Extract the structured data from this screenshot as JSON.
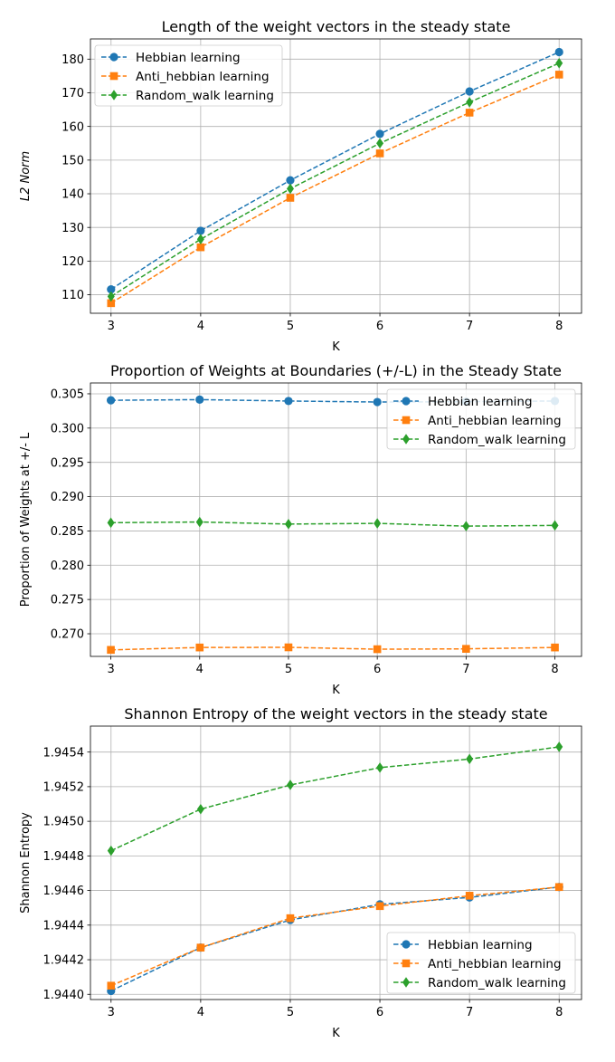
{
  "chart_data": [
    {
      "type": "line",
      "title": "Length of the weight vectors in the steady state",
      "xlabel": "K",
      "ylabel": "L2 Norm",
      "ylabel_italic": true,
      "x": [
        3,
        4,
        5,
        6,
        7,
        8
      ],
      "xlim": [
        2.77,
        8.25
      ],
      "ylim": [
        104.5,
        186.0
      ],
      "yticks": [
        110,
        120,
        130,
        140,
        150,
        160,
        170,
        180
      ],
      "ytick_labels": [
        "110",
        "120",
        "130",
        "140",
        "150",
        "160",
        "170",
        "180"
      ],
      "grid": true,
      "legend_position": "upper-left",
      "series": [
        {
          "name": "Hebbian learning",
          "values": [
            111.6,
            129.0,
            144.0,
            157.8,
            170.4,
            182.1
          ],
          "color": "#1f77b4",
          "marker": "circle"
        },
        {
          "name": "Anti_hebbian learning",
          "values": [
            107.5,
            124.1,
            138.8,
            152.0,
            164.1,
            175.4
          ],
          "color": "#ff7f0e",
          "marker": "square"
        },
        {
          "name": "Random_walk learning",
          "values": [
            109.5,
            126.5,
            141.5,
            155.0,
            167.2,
            178.8
          ],
          "color": "#2ca02c",
          "marker": "diamond"
        }
      ]
    },
    {
      "type": "line",
      "title": "Proportion of Weights at Boundaries (+/-L) in the Steady State",
      "xlabel": "K",
      "ylabel": "Proportion of Weights at +/- L",
      "ylabel_italic": false,
      "x": [
        3,
        4,
        5,
        6,
        7,
        8
      ],
      "xlim": [
        2.77,
        8.3
      ],
      "ylim": [
        0.2667,
        0.30658
      ],
      "yticks": [
        0.27,
        0.275,
        0.28,
        0.285,
        0.29,
        0.295,
        0.3,
        0.305
      ],
      "ytick_labels": [
        "0.270",
        "0.275",
        "0.280",
        "0.285",
        "0.290",
        "0.295",
        "0.300",
        "0.305"
      ],
      "grid": true,
      "legend_position": "upper-right",
      "series": [
        {
          "name": "Hebbian learning",
          "values": [
            0.30405,
            0.30415,
            0.30395,
            0.3038,
            0.30385,
            0.30395
          ],
          "color": "#1f77b4",
          "marker": "circle"
        },
        {
          "name": "Anti_hebbian learning",
          "values": [
            0.26765,
            0.268,
            0.26802,
            0.26775,
            0.2678,
            0.268
          ],
          "color": "#ff7f0e",
          "marker": "square"
        },
        {
          "name": "Random_walk learning",
          "values": [
            0.2862,
            0.2863,
            0.286,
            0.2861,
            0.2857,
            0.2858
          ],
          "color": "#2ca02c",
          "marker": "diamond"
        }
      ]
    },
    {
      "type": "line",
      "title": "Shannon Entropy of the weight vectors in the steady state",
      "xlabel": "K",
      "ylabel": "Shannon Entropy",
      "ylabel_italic": false,
      "x": [
        3,
        4,
        5,
        6,
        7,
        8
      ],
      "xlim": [
        2.77,
        8.25
      ],
      "ylim": [
        1.94397,
        1.94555
      ],
      "yticks": [
        1.944,
        1.9442,
        1.9444,
        1.9446,
        1.9448,
        1.945,
        1.9452,
        1.9454
      ],
      "ytick_labels": [
        "1.9440",
        "1.9442",
        "1.9444",
        "1.9446",
        "1.9448",
        "1.9450",
        "1.9452",
        "1.9454"
      ],
      "grid": true,
      "legend_position": "lower-right",
      "series": [
        {
          "name": "Hebbian learning",
          "values": [
            1.94402,
            1.94427,
            1.94443,
            1.94452,
            1.94456,
            1.94462
          ],
          "color": "#1f77b4",
          "marker": "circle"
        },
        {
          "name": "Anti_hebbian learning",
          "values": [
            1.94405,
            1.94427,
            1.94444,
            1.94451,
            1.94457,
            1.94462
          ],
          "color": "#ff7f0e",
          "marker": "square"
        },
        {
          "name": "Random_walk learning",
          "values": [
            1.94483,
            1.94507,
            1.94521,
            1.94531,
            1.94536,
            1.94543
          ],
          "color": "#2ca02c",
          "marker": "diamond"
        }
      ]
    }
  ]
}
